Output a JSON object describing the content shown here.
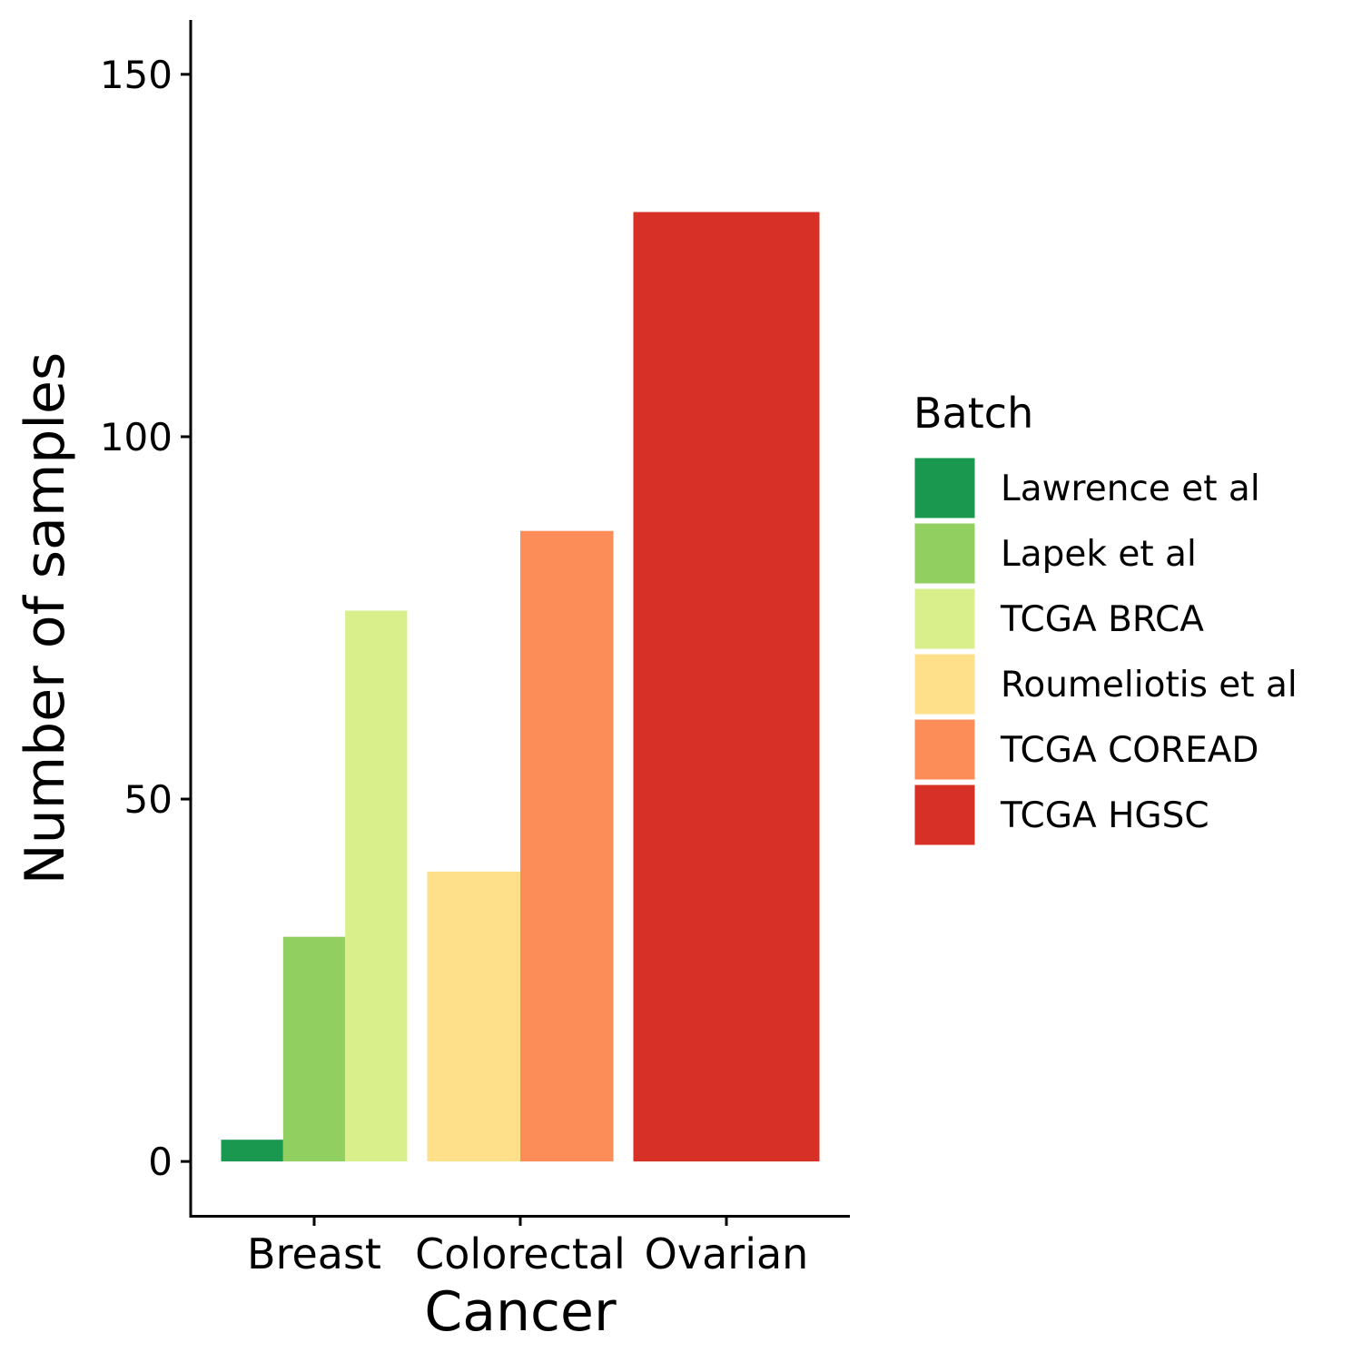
{
  "chart_data": {
    "type": "bar",
    "xlabel": "Cancer",
    "ylabel": "Number of samples",
    "ylim": [
      -7.5,
      157.5
    ],
    "yticks": [
      0,
      50,
      100,
      150
    ],
    "grid": false,
    "legend_position": "right",
    "categories": [
      "Breast",
      "Colorectal",
      "Ovarian"
    ],
    "legend": {
      "title": "Batch",
      "items": [
        {
          "name": "Lawrence et al",
          "color": "#1A9850"
        },
        {
          "name": "Lapek et al",
          "color": "#91CF60"
        },
        {
          "name": "TCGA BRCA",
          "color": "#D9EF8B"
        },
        {
          "name": "Roumeliotis et al",
          "color": "#FEE08B"
        },
        {
          "name": "TCGA COREAD",
          "color": "#FC8D59"
        },
        {
          "name": "TCGA HGSC",
          "color": "#D73027"
        }
      ]
    },
    "bars": [
      {
        "category": "Breast",
        "batch": "Lawrence et al",
        "value": 3
      },
      {
        "category": "Breast",
        "batch": "Lapek et al",
        "value": 31
      },
      {
        "category": "Breast",
        "batch": "TCGA BRCA",
        "value": 76
      },
      {
        "category": "Colorectal",
        "batch": "Roumeliotis et al",
        "value": 40
      },
      {
        "category": "Colorectal",
        "batch": "TCGA COREAD",
        "value": 87
      },
      {
        "category": "Ovarian",
        "batch": "TCGA HGSC",
        "value": 131
      }
    ]
  }
}
